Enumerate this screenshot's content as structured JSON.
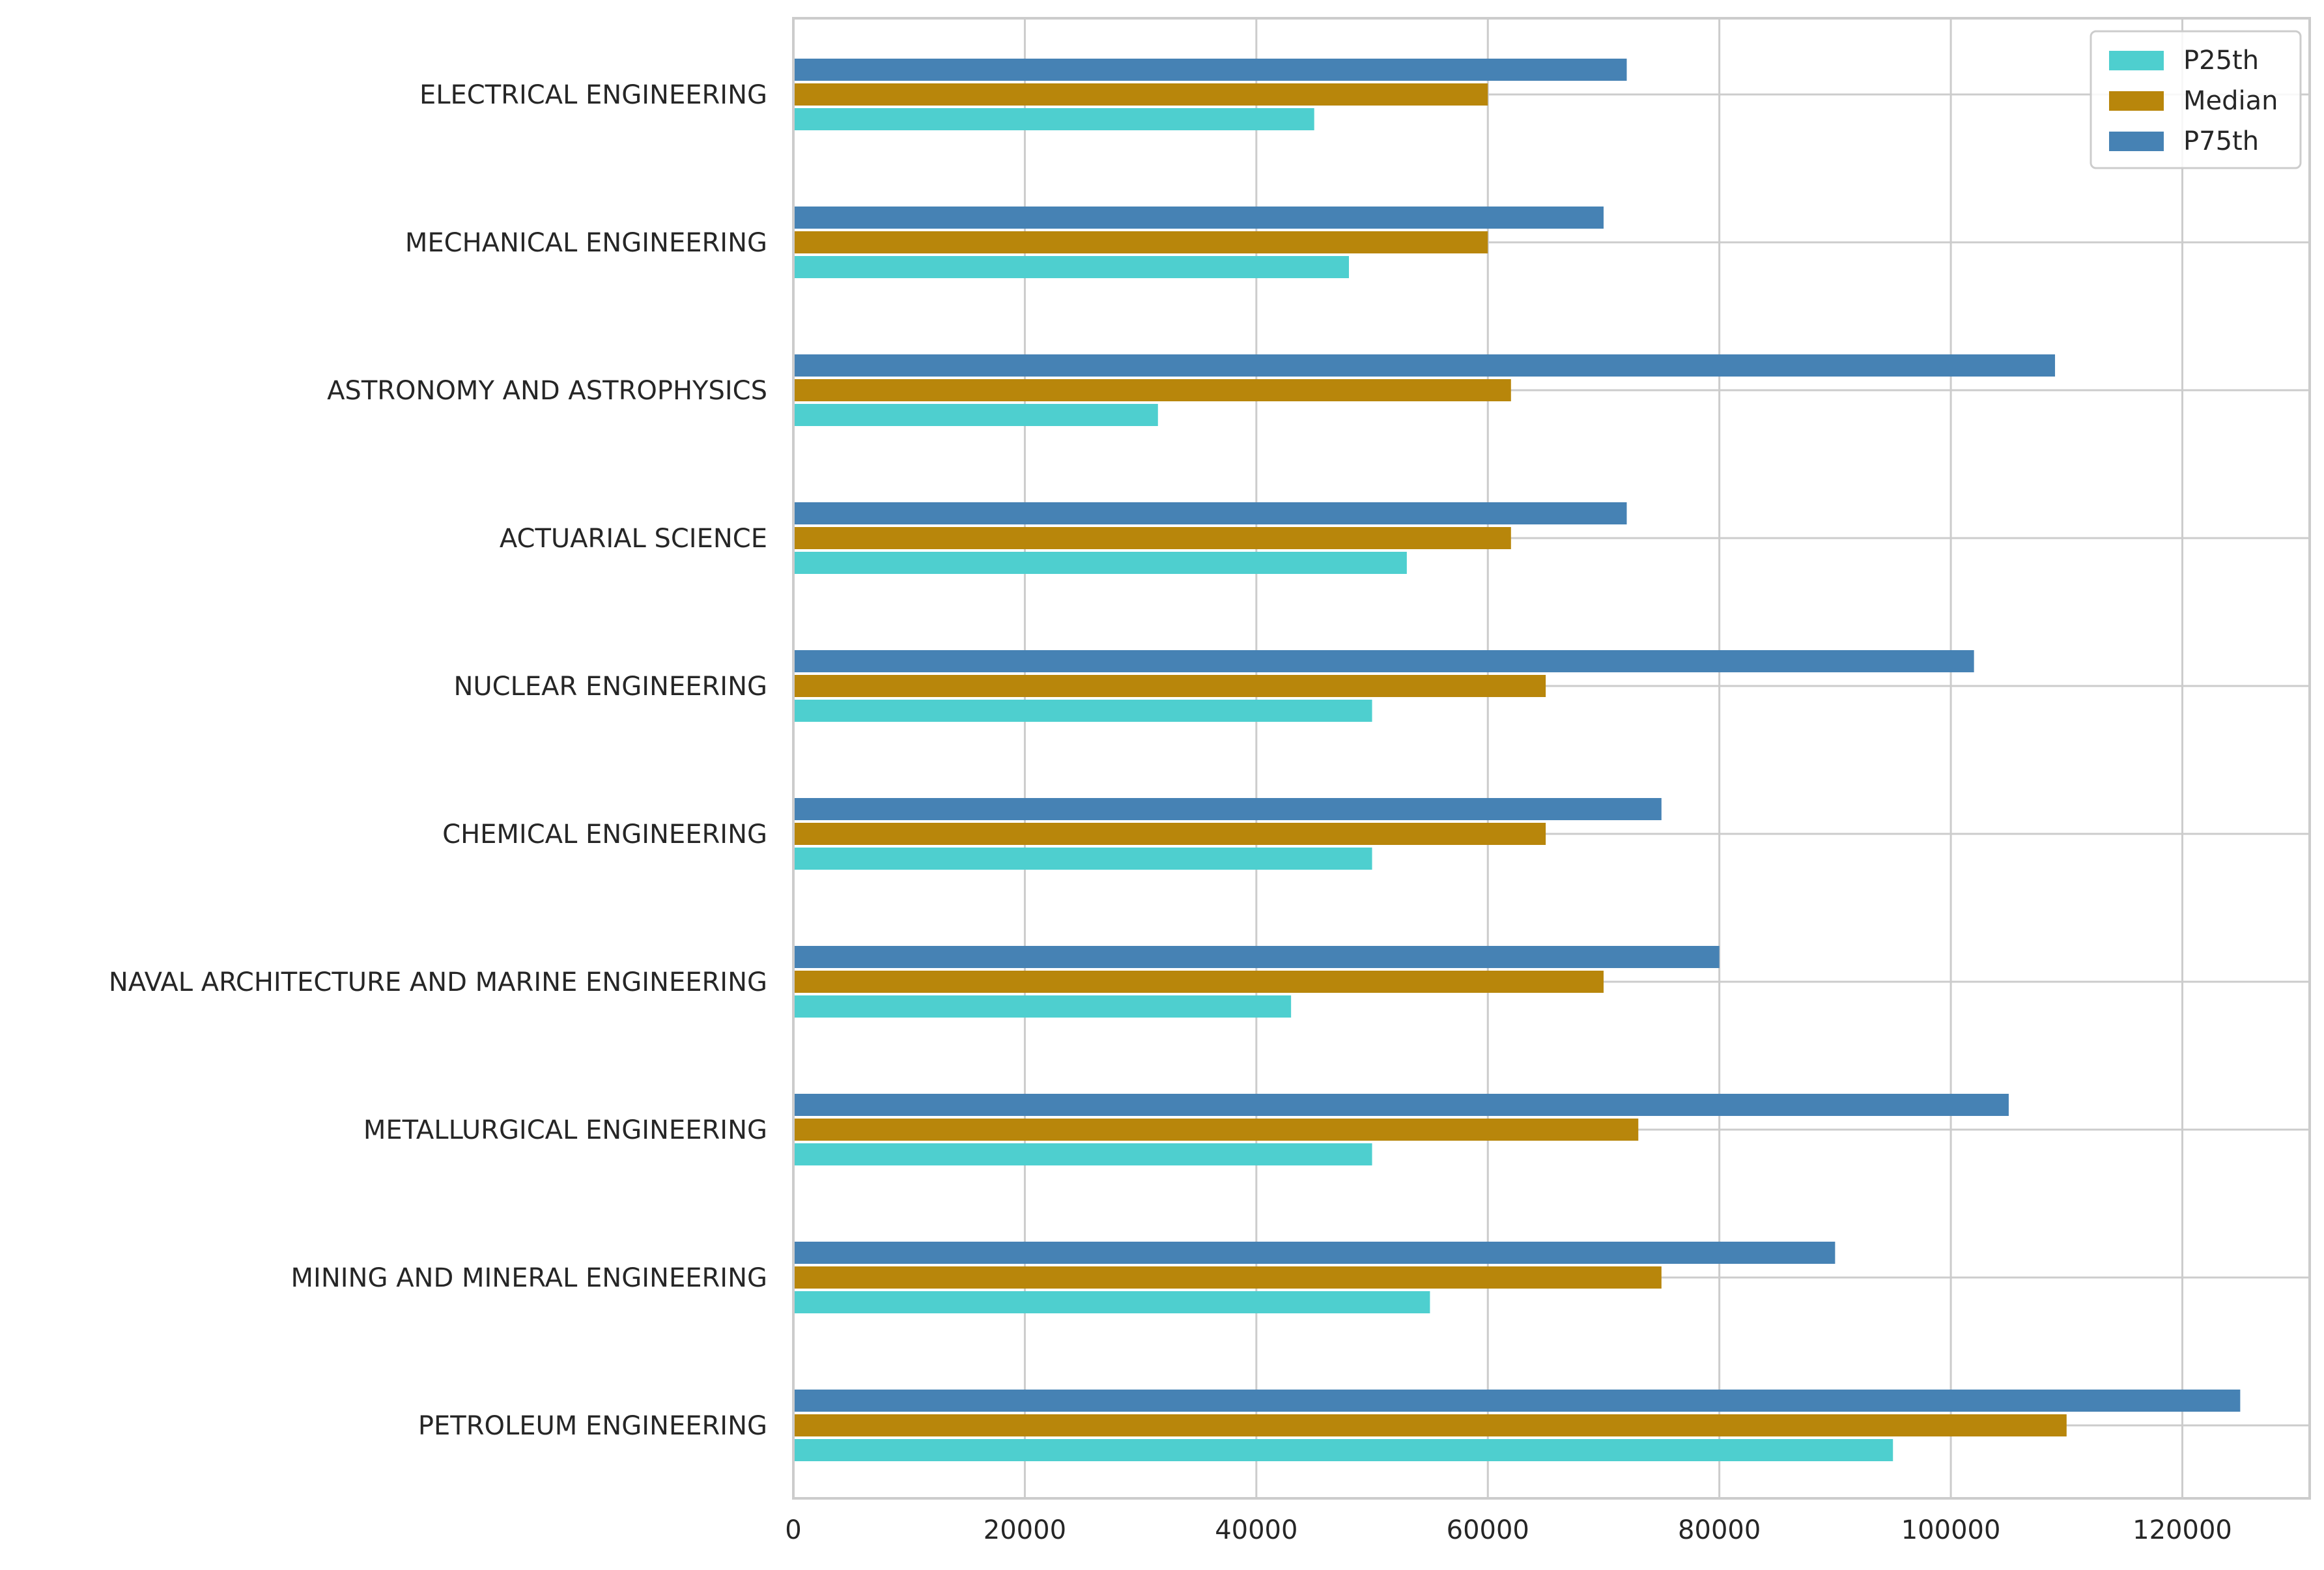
{
  "chart_data": {
    "type": "bar",
    "orientation": "horizontal",
    "categories": [
      "PETROLEUM ENGINEERING",
      "MINING AND MINERAL ENGINEERING",
      "METALLURGICAL ENGINEERING",
      "NAVAL ARCHITECTURE AND MARINE ENGINEERING",
      "CHEMICAL ENGINEERING",
      "NUCLEAR ENGINEERING",
      "ACTUARIAL SCIENCE",
      "ASTRONOMY AND ASTROPHYSICS",
      "MECHANICAL ENGINEERING",
      "ELECTRICAL ENGINEERING"
    ],
    "series": [
      {
        "name": "P25th",
        "color": "#4ecfcf",
        "values": [
          95000,
          55000,
          50000,
          43000,
          50000,
          50000,
          53000,
          31500,
          48000,
          45000
        ]
      },
      {
        "name": "Median",
        "color": "#b8860b",
        "values": [
          110000,
          75000,
          73000,
          70000,
          65000,
          65000,
          62000,
          62000,
          60000,
          60000
        ]
      },
      {
        "name": "P75th",
        "color": "#4682b4",
        "values": [
          125000,
          90000,
          105000,
          80000,
          75000,
          102000,
          72000,
          109000,
          70000,
          72000
        ]
      }
    ],
    "xlim": [
      0,
      131000
    ],
    "xticks": [
      0,
      20000,
      40000,
      60000,
      80000,
      100000,
      120000
    ],
    "xtick_labels": [
      "0",
      "20000",
      "40000",
      "60000",
      "80000",
      "100000",
      "120000"
    ],
    "title": "",
    "xlabel": "",
    "ylabel": "",
    "grid": true,
    "legend_position": "top-right"
  }
}
